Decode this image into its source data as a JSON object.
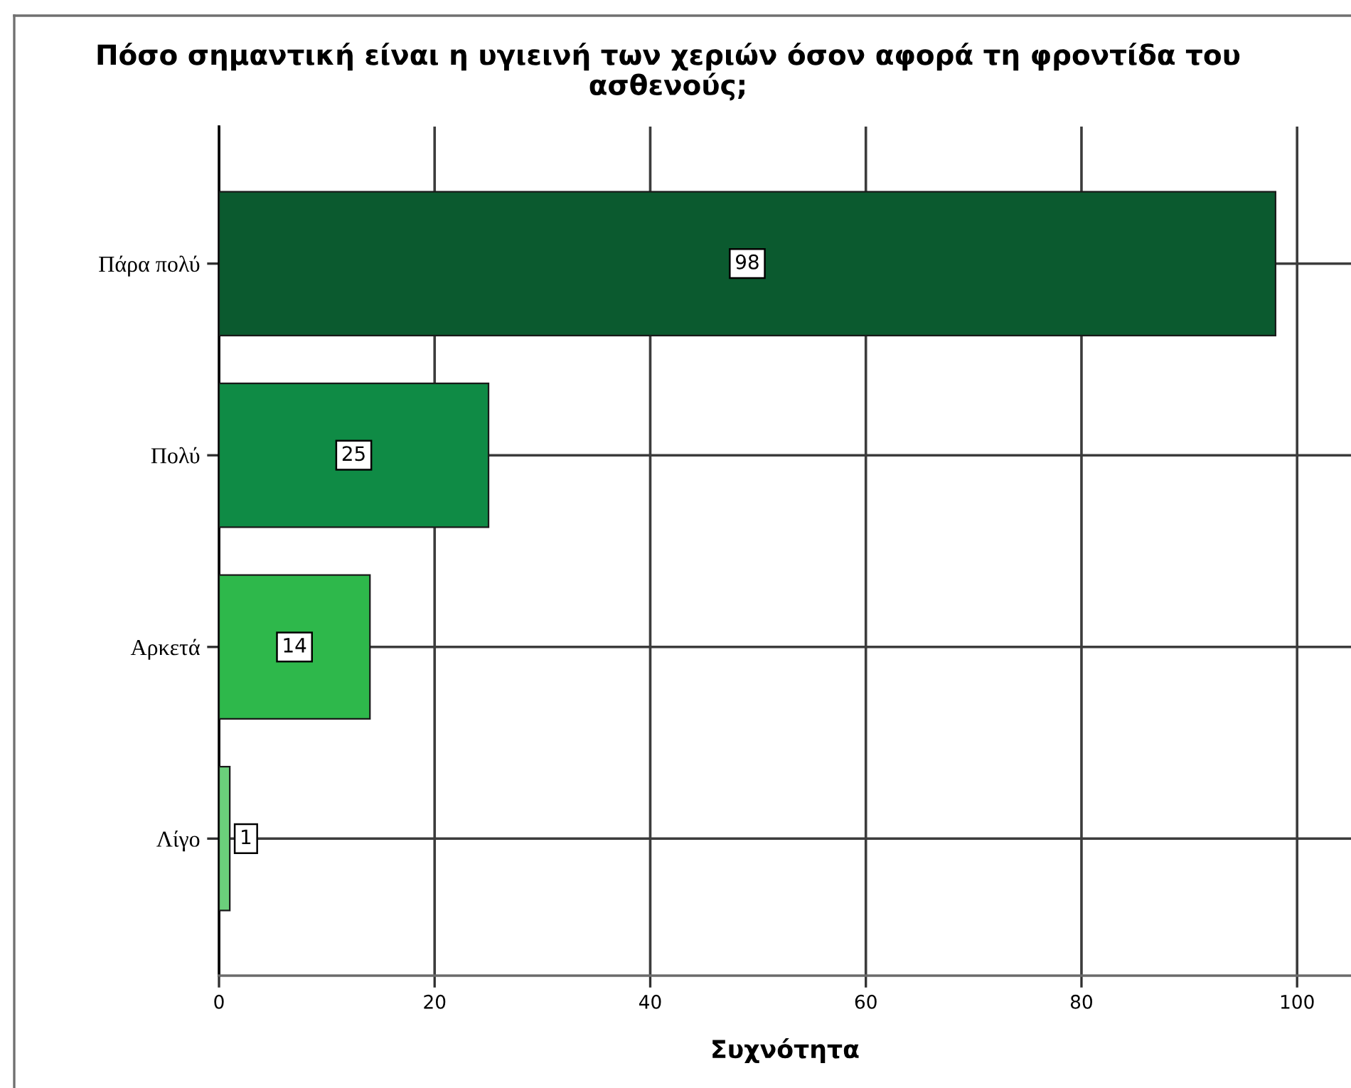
{
  "chart_data": {
    "type": "bar",
    "orientation": "horizontal",
    "title": "Πόσο σημαντική είναι η υγιεινή των χεριών όσον αφορά τη φροντίδα του ασθενούς;",
    "xlabel": "Συχνότητα",
    "categories": [
      "Πάρα πολύ",
      "Πολύ",
      "Αρκετά",
      "Λίγο"
    ],
    "values": [
      98,
      25,
      14,
      1
    ],
    "colors": [
      "#0b5a2f",
      "#0f8b45",
      "#2eb84b",
      "#6bcf7b"
    ],
    "xlim": [
      0,
      105
    ],
    "xticks": [
      0,
      20,
      40,
      60,
      80,
      100
    ],
    "grid": true,
    "data_labels": true
  }
}
